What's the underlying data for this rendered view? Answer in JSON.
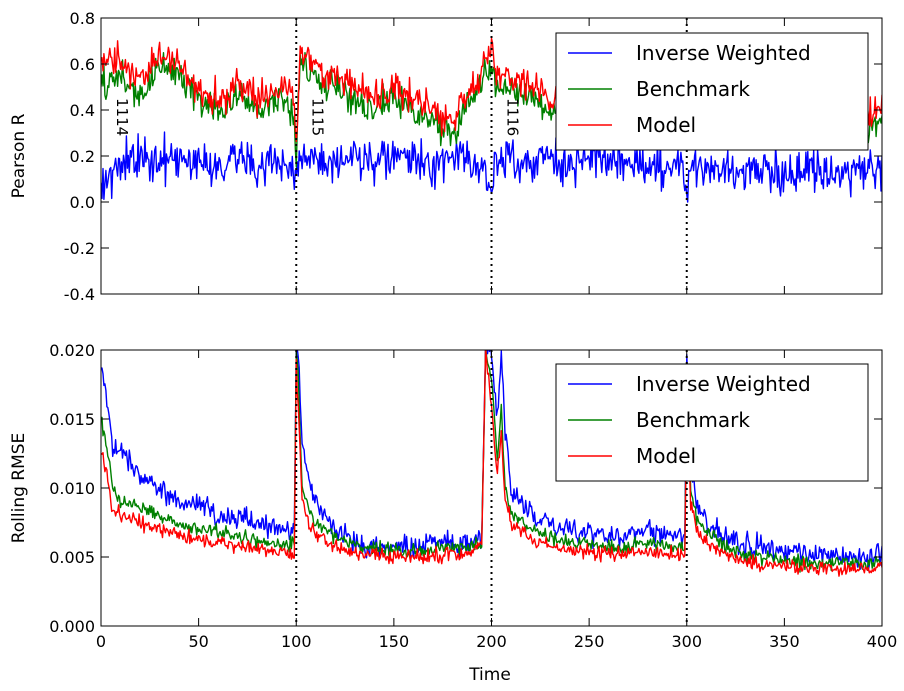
{
  "figure": {
    "xlabel": "Time"
  },
  "chart_data": [
    {
      "type": "line",
      "title": "",
      "xlabel": "",
      "ylabel": "Pearson R",
      "xlim": [
        0,
        400
      ],
      "ylim": [
        -0.4,
        0.8
      ],
      "xticks": [
        0,
        50,
        100,
        150,
        200,
        250,
        300,
        350,
        400
      ],
      "yticks": [
        "-0.4",
        "-0.2",
        "0.0",
        "0.2",
        "0.4",
        "0.6",
        "0.8"
      ],
      "x_tick_labels_shown": false,
      "grid": false,
      "legend": {
        "position": "top-right",
        "entries": [
          "Inverse Weighted",
          "Benchmark",
          "Model"
        ]
      },
      "vlines": [
        {
          "x": 100,
          "label": "1114"
        },
        {
          "x": 200,
          "label": "1115"
        },
        {
          "x": 300,
          "label": "1116"
        }
      ],
      "vline_label_positions": [
        0,
        100,
        200
      ],
      "series": [
        {
          "name": "Inverse Weighted",
          "color": "#0000ff",
          "x": [
            0,
            10,
            20,
            30,
            40,
            50,
            60,
            70,
            80,
            90,
            98,
            100,
            102,
            110,
            120,
            130,
            140,
            150,
            160,
            170,
            180,
            190,
            196,
            200,
            202,
            210,
            220,
            230,
            240,
            250,
            260,
            270,
            280,
            290,
            298,
            300,
            302,
            310,
            320,
            330,
            340,
            350,
            360,
            370,
            380,
            390,
            400
          ],
          "y": [
            0.1,
            0.15,
            0.2,
            0.18,
            0.17,
            0.2,
            0.15,
            0.22,
            0.14,
            0.18,
            0.15,
            0.08,
            0.2,
            0.18,
            0.14,
            0.2,
            0.16,
            0.2,
            0.18,
            0.15,
            0.2,
            0.18,
            0.14,
            0.0,
            0.18,
            0.2,
            0.16,
            0.2,
            0.15,
            0.18,
            0.2,
            0.16,
            0.17,
            0.15,
            0.16,
            0.05,
            0.15,
            0.16,
            0.12,
            0.15,
            0.14,
            0.12,
            0.15,
            0.14,
            0.12,
            0.15,
            0.13
          ],
          "noise": 0.09
        },
        {
          "name": "Benchmark",
          "color": "#008000",
          "x": [
            0,
            10,
            20,
            30,
            40,
            50,
            60,
            70,
            80,
            90,
            98,
            100,
            102,
            110,
            120,
            130,
            140,
            150,
            160,
            170,
            180,
            190,
            196,
            200,
            202,
            210,
            220,
            230,
            240,
            250,
            260,
            270,
            280,
            290,
            298,
            300,
            302,
            310,
            320,
            330,
            340,
            350,
            360,
            370,
            380,
            390,
            400
          ],
          "y": [
            0.5,
            0.55,
            0.45,
            0.6,
            0.55,
            0.45,
            0.4,
            0.45,
            0.4,
            0.45,
            0.4,
            0.2,
            0.6,
            0.55,
            0.5,
            0.45,
            0.4,
            0.45,
            0.4,
            0.35,
            0.3,
            0.45,
            0.55,
            0.6,
            0.5,
            0.5,
            0.45,
            0.4,
            0.35,
            0.3,
            0.35,
            0.3,
            0.3,
            0.3,
            0.3,
            0.3,
            0.35,
            0.35,
            0.3,
            0.3,
            0.3,
            0.3,
            0.35,
            0.3,
            0.3,
            0.3,
            0.35
          ],
          "noise": 0.07
        },
        {
          "name": "Model",
          "color": "#ff0000",
          "x": [
            0,
            10,
            20,
            30,
            40,
            50,
            60,
            70,
            80,
            90,
            98,
            100,
            102,
            110,
            120,
            130,
            140,
            150,
            160,
            170,
            180,
            190,
            196,
            200,
            202,
            210,
            220,
            230,
            240,
            250,
            260,
            270,
            280,
            290,
            298,
            300,
            302,
            310,
            320,
            330,
            340,
            350,
            360,
            370,
            380,
            390,
            400
          ],
          "y": [
            0.6,
            0.62,
            0.5,
            0.65,
            0.58,
            0.5,
            0.45,
            0.5,
            0.45,
            0.5,
            0.5,
            0.25,
            0.65,
            0.6,
            0.55,
            0.5,
            0.45,
            0.5,
            0.45,
            0.4,
            0.35,
            0.5,
            0.6,
            0.7,
            0.55,
            0.55,
            0.5,
            0.45,
            0.4,
            0.35,
            0.4,
            0.35,
            0.35,
            0.35,
            0.35,
            0.35,
            0.4,
            0.4,
            0.35,
            0.35,
            0.35,
            0.35,
            0.4,
            0.35,
            0.35,
            0.38,
            0.4
          ],
          "noise": 0.07
        }
      ]
    },
    {
      "type": "line",
      "title": "",
      "xlabel": "Time",
      "ylabel": "Rolling RMSE",
      "xlim": [
        0,
        400
      ],
      "ylim": [
        0.0,
        0.02
      ],
      "xticks": [
        "0",
        "50",
        "100",
        "150",
        "200",
        "250",
        "300",
        "350",
        "400"
      ],
      "yticks": [
        "0.000",
        "0.005",
        "0.010",
        "0.015",
        "0.020"
      ],
      "x_tick_labels_shown": true,
      "grid": false,
      "legend": {
        "position": "top-right",
        "entries": [
          "Inverse Weighted",
          "Benchmark",
          "Model"
        ]
      },
      "vlines": [
        {
          "x": 100
        },
        {
          "x": 200
        },
        {
          "x": 300
        }
      ],
      "series": [
        {
          "name": "Inverse Weighted",
          "color": "#0000ff",
          "x": [
            0,
            3,
            6,
            10,
            15,
            20,
            30,
            40,
            50,
            60,
            70,
            80,
            90,
            99,
            100,
            101,
            103,
            106,
            110,
            120,
            130,
            140,
            150,
            160,
            170,
            180,
            190,
            195,
            197,
            200,
            203,
            205,
            207,
            210,
            220,
            230,
            240,
            250,
            260,
            270,
            280,
            290,
            299,
            300,
            302,
            305,
            310,
            320,
            330,
            340,
            350,
            360,
            370,
            380,
            390,
            400
          ],
          "y": [
            0.019,
            0.016,
            0.013,
            0.013,
            0.012,
            0.011,
            0.01,
            0.009,
            0.009,
            0.008,
            0.008,
            0.0075,
            0.007,
            0.007,
            0.02,
            0.02,
            0.013,
            0.011,
            0.009,
            0.007,
            0.006,
            0.0058,
            0.0058,
            0.0058,
            0.006,
            0.006,
            0.006,
            0.0065,
            0.02,
            0.02,
            0.015,
            0.02,
            0.014,
            0.01,
            0.008,
            0.0075,
            0.007,
            0.0068,
            0.0066,
            0.0065,
            0.0068,
            0.0065,
            0.0065,
            0.02,
            0.012,
            0.009,
            0.0075,
            0.0065,
            0.006,
            0.0058,
            0.0055,
            0.0052,
            0.0052,
            0.005,
            0.005,
            0.0052
          ],
          "noise": 0.0008
        },
        {
          "name": "Benchmark",
          "color": "#008000",
          "x": [
            0,
            3,
            6,
            10,
            15,
            20,
            30,
            40,
            50,
            60,
            70,
            80,
            90,
            99,
            100,
            101,
            103,
            106,
            110,
            120,
            130,
            140,
            150,
            160,
            170,
            180,
            190,
            195,
            197,
            200,
            203,
            205,
            207,
            210,
            220,
            230,
            240,
            250,
            260,
            270,
            280,
            290,
            299,
            300,
            302,
            305,
            310,
            320,
            330,
            340,
            350,
            360,
            370,
            380,
            390,
            400
          ],
          "y": [
            0.015,
            0.013,
            0.01,
            0.009,
            0.009,
            0.0085,
            0.008,
            0.0075,
            0.007,
            0.0068,
            0.0065,
            0.0062,
            0.006,
            0.006,
            0.02,
            0.018,
            0.01,
            0.0085,
            0.0075,
            0.0065,
            0.0058,
            0.0056,
            0.0055,
            0.0055,
            0.0056,
            0.0057,
            0.0058,
            0.006,
            0.02,
            0.018,
            0.012,
            0.016,
            0.01,
            0.0085,
            0.007,
            0.0065,
            0.006,
            0.006,
            0.0058,
            0.0058,
            0.006,
            0.0058,
            0.0058,
            0.018,
            0.01,
            0.0078,
            0.0068,
            0.0058,
            0.0052,
            0.005,
            0.0048,
            0.0046,
            0.0046,
            0.0045,
            0.0045,
            0.0047
          ],
          "noise": 0.0005
        },
        {
          "name": "Model",
          "color": "#ff0000",
          "x": [
            0,
            3,
            6,
            10,
            15,
            20,
            30,
            40,
            50,
            60,
            70,
            80,
            90,
            99,
            100,
            101,
            103,
            106,
            110,
            120,
            130,
            140,
            150,
            160,
            170,
            180,
            190,
            195,
            197,
            200,
            203,
            205,
            207,
            210,
            220,
            230,
            240,
            250,
            260,
            270,
            280,
            290,
            299,
            300,
            302,
            305,
            310,
            320,
            330,
            340,
            350,
            360,
            370,
            380,
            390,
            400
          ],
          "y": [
            0.013,
            0.011,
            0.0085,
            0.008,
            0.0078,
            0.0075,
            0.007,
            0.0066,
            0.0062,
            0.006,
            0.0058,
            0.0055,
            0.0053,
            0.0052,
            0.019,
            0.016,
            0.009,
            0.0075,
            0.0066,
            0.0058,
            0.0053,
            0.0051,
            0.005,
            0.005,
            0.0051,
            0.0052,
            0.0053,
            0.0058,
            0.02,
            0.016,
            0.011,
            0.014,
            0.009,
            0.0075,
            0.0063,
            0.0058,
            0.0055,
            0.0054,
            0.0052,
            0.0052,
            0.0054,
            0.0052,
            0.0052,
            0.017,
            0.009,
            0.007,
            0.006,
            0.0052,
            0.0047,
            0.0045,
            0.0043,
            0.0042,
            0.0042,
            0.0041,
            0.0041,
            0.0043
          ],
          "noise": 0.0005
        }
      ]
    }
  ]
}
